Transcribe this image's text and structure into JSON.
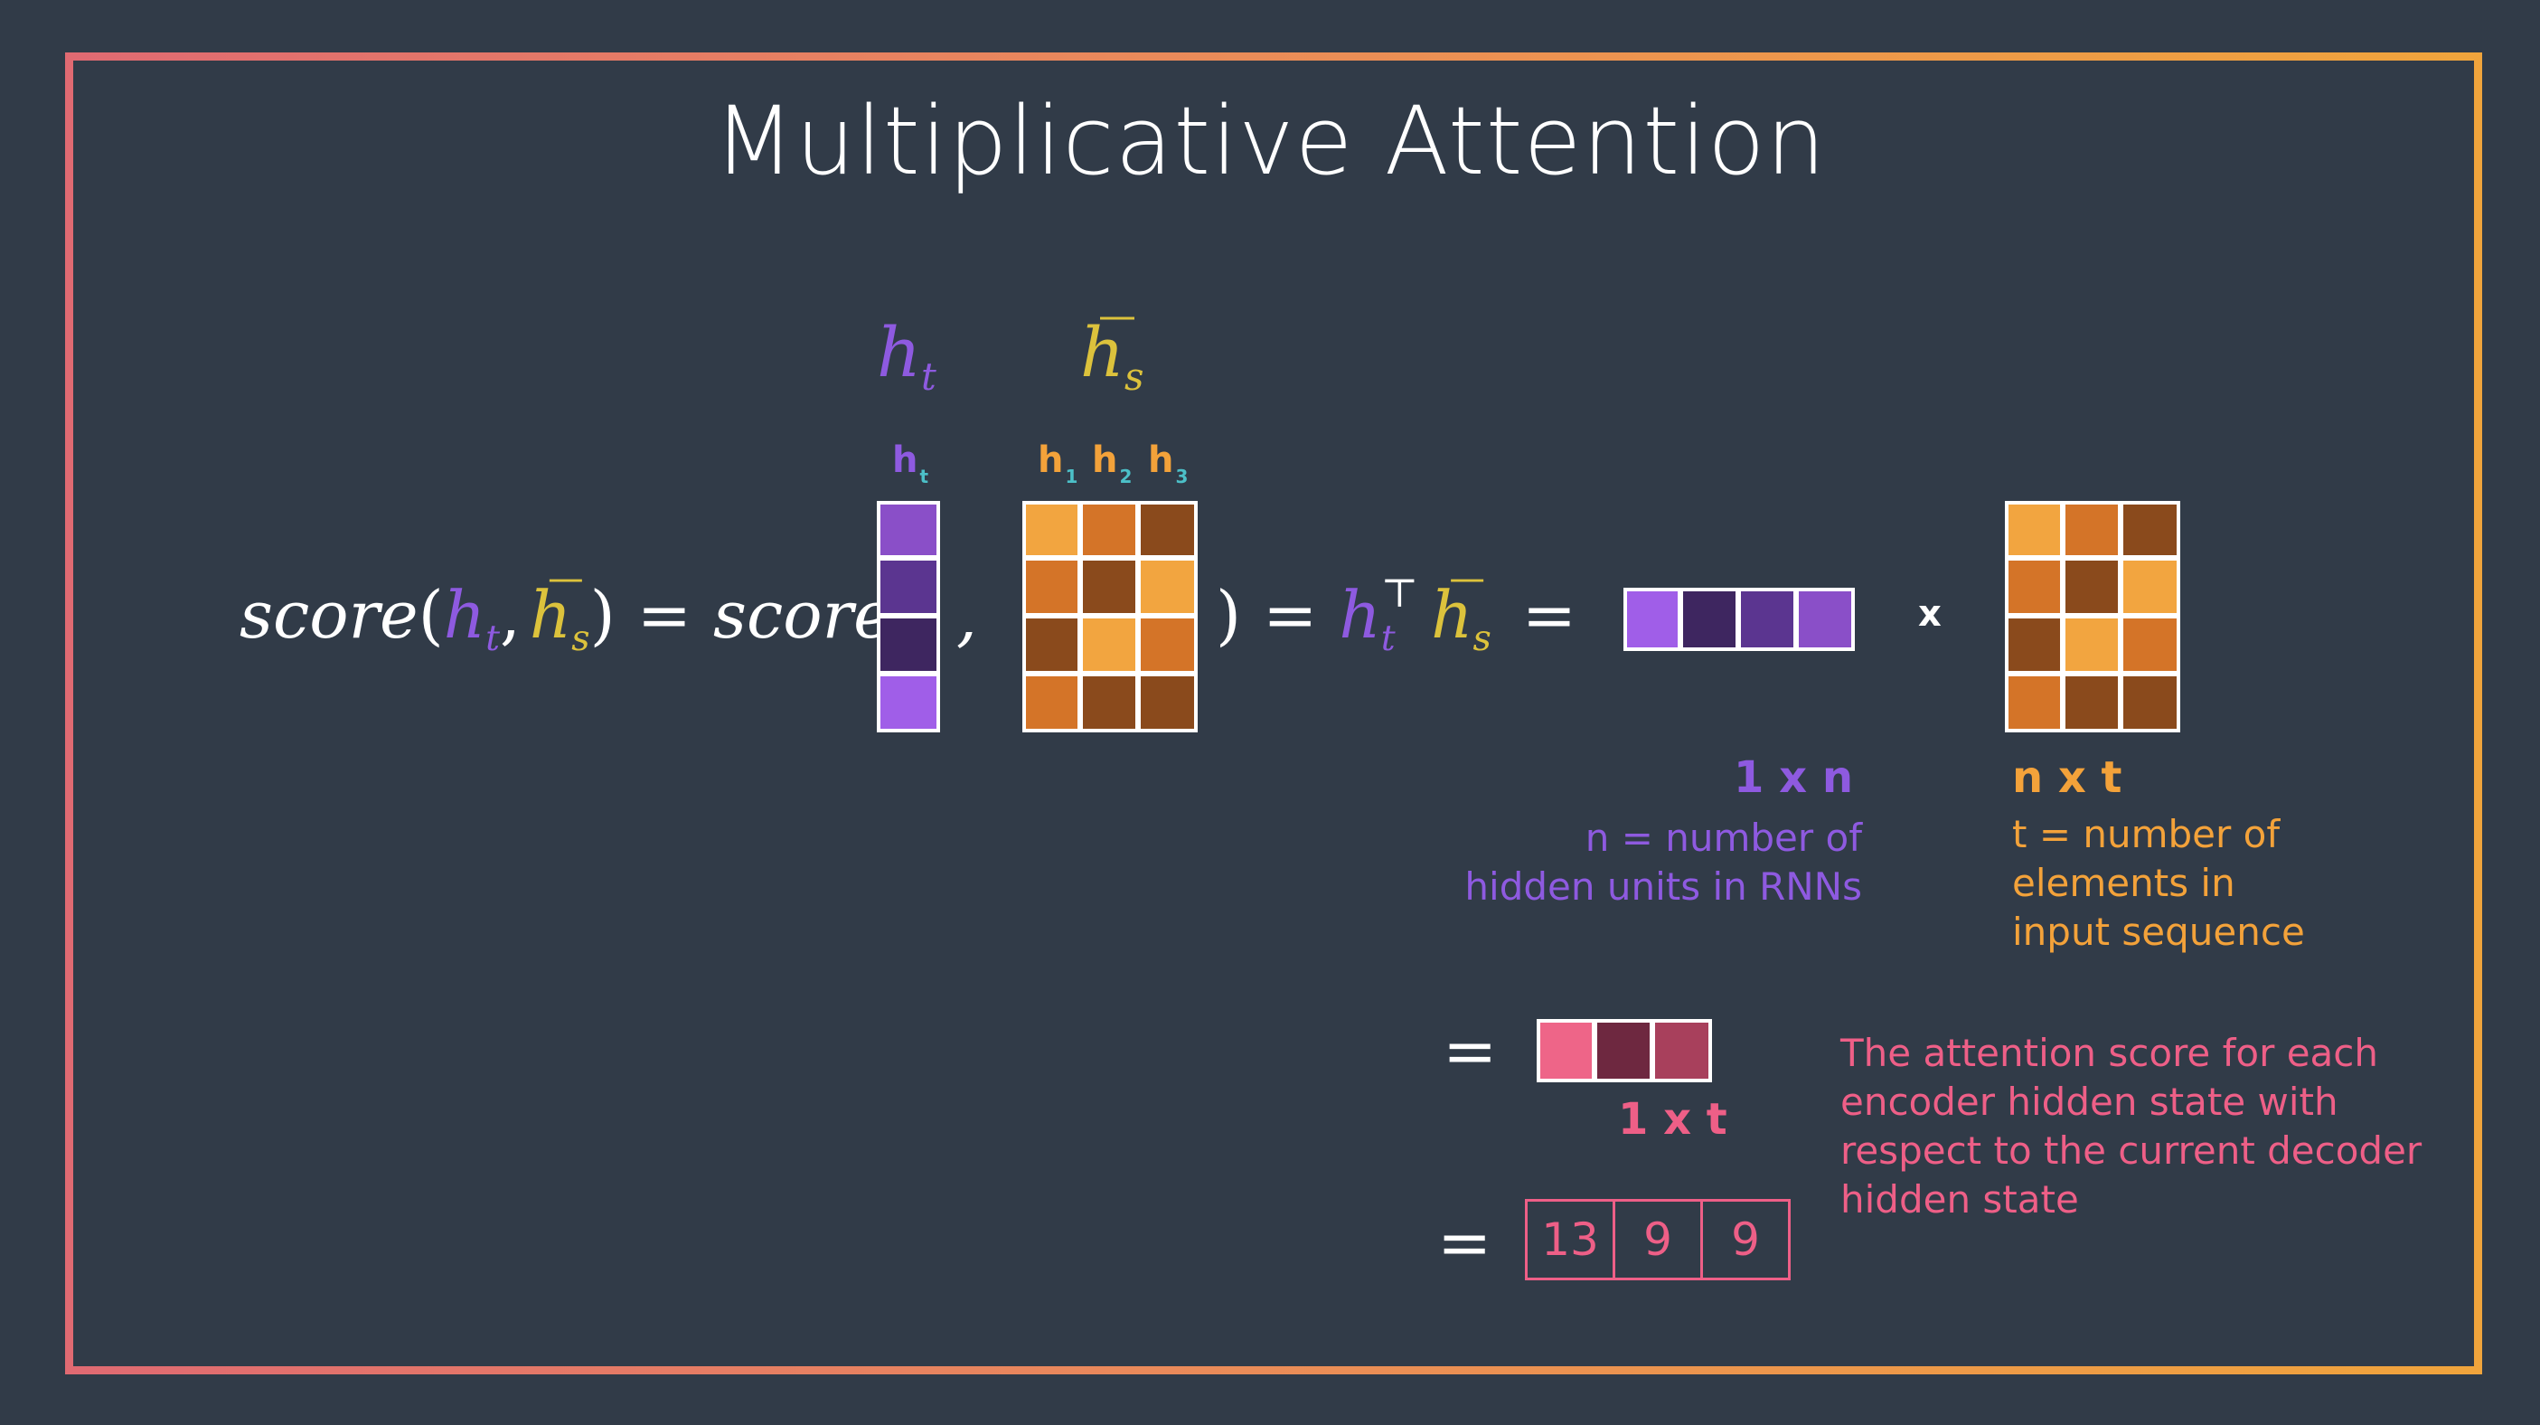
{
  "title": "Multiplicative Attention",
  "labels": {
    "ht_symbol_main": "h",
    "ht_symbol_sub": "t",
    "hs_symbol_main": "h",
    "hs_symbol_sub": "s",
    "col_ht": "h",
    "col_ht_sub": "t",
    "col_h1": "h",
    "col_h1_sub": "1",
    "col_h2": "h",
    "col_h2_sub": "2",
    "col_h3": "h",
    "col_h3_sub": "3"
  },
  "equation": {
    "score_fn": "score",
    "open_paren": "(",
    "comma": ",",
    "close_paren": ")",
    "equals": "=",
    "transpose": "⊤"
  },
  "multiply_sign": "x",
  "dims": {
    "row_vec": "1 x n",
    "row_vec_desc_line1": "n = number of",
    "row_vec_desc_line2": "hidden units in RNNs",
    "matrix": "n x t",
    "matrix_desc_line1": "t = number of",
    "matrix_desc_line2": "elements in",
    "matrix_desc_line3": "input sequence",
    "result": "1 x t"
  },
  "result_note": [
    "The attention score for each",
    "encoder hidden state with",
    "respect to the current decoder",
    "hidden state"
  ],
  "scores": [
    "13",
    "9",
    "9"
  ],
  "colors": {
    "background": "#313b48",
    "purple": "#8e5ae0",
    "yellow": "#dcc23c",
    "orange": "#f3a23a",
    "pink": "#ee5f87",
    "ht_cells": [
      "#8a4fc8",
      "#5b3590",
      "#3e2660",
      "#a05ee8"
    ],
    "hs_cells": [
      [
        "#f2a540",
        "#d47428",
        "#8a4a1c"
      ],
      [
        "#d47428",
        "#8a4a1c",
        "#f2a540"
      ],
      [
        "#8a4a1c",
        "#f2a540",
        "#d47428"
      ],
      [
        "#d47428",
        "#8a4a1c",
        "#8a4a1c"
      ]
    ],
    "row_vec_cells": [
      "#a05ee8",
      "#3e2660",
      "#5b3590",
      "#8a4fc8"
    ],
    "result_cells": [
      "#ee6588",
      "#6e2840",
      "#a8405c"
    ]
  }
}
